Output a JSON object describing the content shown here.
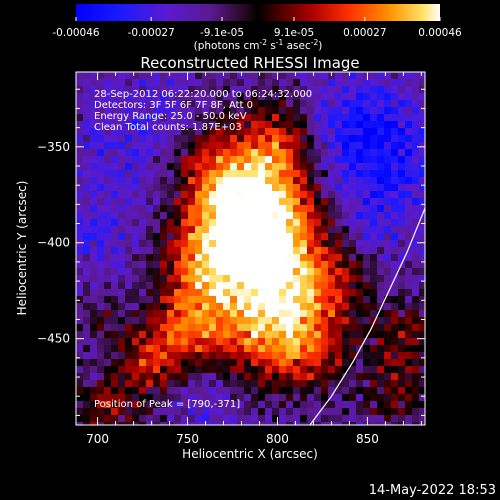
{
  "chart_data": {
    "type": "heatmap",
    "title": "Reconstructed RHESSI Image",
    "xlabel": "Heliocentric X (arcsec)",
    "ylabel": "Heliocentric Y (arcsec)",
    "xlim": [
      688,
      882
    ],
    "ylim": [
      -495,
      -311
    ],
    "x_ticks": [
      700,
      750,
      800,
      850
    ],
    "y_ticks": [
      -350,
      -400,
      -450
    ],
    "colorbar": {
      "unit_line1": "(photons cm",
      "unit_exp1": "-2",
      "unit_mid": " s",
      "unit_exp2": "-1",
      "unit_mid2": " asec",
      "unit_exp3": "-2",
      "unit_close": ")",
      "ticks": [
        "-0.00046",
        "-0.00027",
        "-9.1e-05",
        "9.1e-05",
        "0.00027",
        "0.00046"
      ],
      "ticks_values": [
        -0.00046,
        -0.00027,
        -9.1e-05,
        9.1e-05,
        0.00027,
        0.00046
      ],
      "range": [
        -0.00046,
        0.00046
      ]
    },
    "annotations": {
      "time": "28-Sep-2012 06:22:20.000 to 06:24:32.000",
      "detectors": "Detectors: 3F 5F 6F 7F 8F, Att 0",
      "energy": "Energy Range: 25.0 - 50.0 keV",
      "clean": "Clean    Total counts: 1.87E+03",
      "peak": "Position of Peak = [790,-371]"
    },
    "peak": [
      790,
      -371
    ],
    "limb_curve": [
      [
        818,
        -495
      ],
      [
        830,
        -480
      ],
      [
        842,
        -462
      ],
      [
        852,
        -445
      ],
      [
        862,
        -425
      ],
      [
        872,
        -405
      ],
      [
        882,
        -382
      ]
    ]
  },
  "footer": {
    "date": "14-May-2022 18:53"
  },
  "colors": {
    "background": "#000000",
    "text": "#ffffff"
  }
}
